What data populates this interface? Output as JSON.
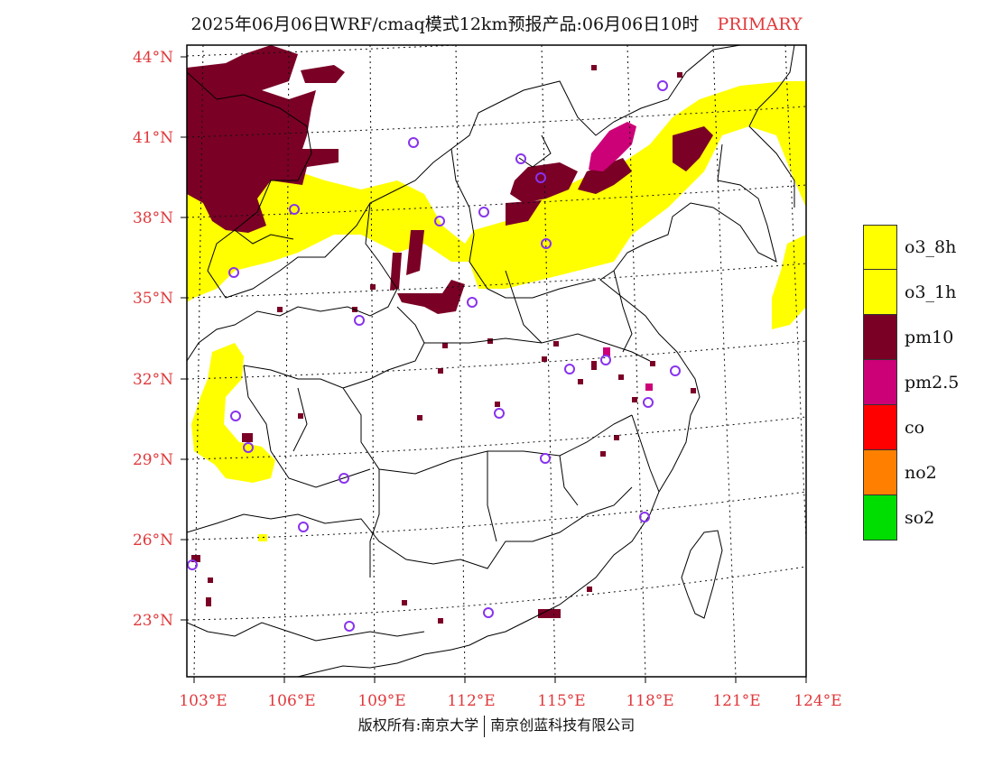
{
  "title": {
    "text": "2025年06月06日WRF/cmaq模式12km预报产品:06月06日10时",
    "tag": "PRIMARY"
  },
  "map": {
    "lat_labels": [
      "44°N",
      "41°N",
      "38°N",
      "35°N",
      "32°N",
      "29°N",
      "26°N",
      "23°N"
    ],
    "lon_labels": [
      "103°E",
      "106°E",
      "109°E",
      "112°E",
      "115°E",
      "118°E",
      "121°E",
      "124°E"
    ],
    "colors": {
      "o3": "#ffff00",
      "pm10": "#7a0026",
      "pm25": "#cc0077",
      "station": "#8833ee",
      "text_accent": "#e0383b"
    }
  },
  "legend": [
    {
      "label": "o3_8h",
      "color": "#ffff00"
    },
    {
      "label": "o3_1h",
      "color": "#ffff00"
    },
    {
      "label": "pm10",
      "color": "#7a0026"
    },
    {
      "label": "pm2.5",
      "color": "#cc0077"
    },
    {
      "label": "co",
      "color": "#ff0000"
    },
    {
      "label": "no2",
      "color": "#ff8000"
    },
    {
      "label": "so2",
      "color": "#00dd00"
    }
  ],
  "footer": {
    "left": "版权所有:南京大学",
    "right": "南京创蓝科技有限公司"
  }
}
